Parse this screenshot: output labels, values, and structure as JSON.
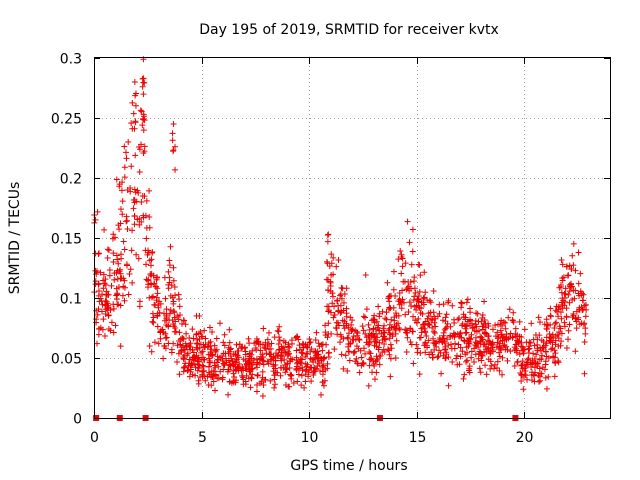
{
  "chart_data": {
    "type": "scatter",
    "title": "Day 195 of 2019, SRMTID for receiver kvtx",
    "xlabel": "GPS time / hours",
    "ylabel": "SRMTID / TECUs",
    "xlim": [
      0,
      24
    ],
    "ylim": [
      0,
      0.3
    ],
    "x_ticks": [
      0,
      5,
      10,
      15,
      20
    ],
    "y_ticks": [
      0,
      0.05,
      0.1,
      0.15,
      0.2,
      0.25,
      0.3
    ],
    "x_tick_labels": [
      "0",
      "5",
      "10",
      "15",
      "20"
    ],
    "y_tick_labels": [
      "0",
      "0.05",
      "0.1",
      "0.15",
      "0.2",
      "0.25",
      "0.3"
    ],
    "grid": true,
    "marker": "plus",
    "color": "#ee0000",
    "series": [
      {
        "name": "SRMTID",
        "profile_x": [
          0,
          0.2,
          0.5,
          1.0,
          1.5,
          1.8,
          2.0,
          2.3,
          2.5,
          2.8,
          3.0,
          3.3,
          3.6,
          3.8,
          4.2,
          5.0,
          6.0,
          7.0,
          8.0,
          9.0,
          10.0,
          10.7,
          11.0,
          11.3,
          11.8,
          12.5,
          13.3,
          14.0,
          14.5,
          15.0,
          16.0,
          17.0,
          18.0,
          18.5,
          19.0,
          19.5,
          20.0,
          20.5,
          21.0,
          21.5,
          22.0,
          22.5,
          22.9
        ],
        "profile_y": [
          0.13,
          0.1,
          0.09,
          0.12,
          0.15,
          0.2,
          0.17,
          0.22,
          0.12,
          0.1,
          0.08,
          0.07,
          0.12,
          0.07,
          0.06,
          0.05,
          0.045,
          0.045,
          0.05,
          0.05,
          0.05,
          0.045,
          0.1,
          0.09,
          0.07,
          0.06,
          0.065,
          0.08,
          0.1,
          0.09,
          0.07,
          0.065,
          0.065,
          0.06,
          0.06,
          0.07,
          0.045,
          0.05,
          0.055,
          0.07,
          0.1,
          0.09,
          0.08
        ],
        "notable_peaks": [
          {
            "x": 2.3,
            "y": 0.283
          },
          {
            "x": 1.9,
            "y": 0.28
          },
          {
            "x": 3.7,
            "y": 0.245
          },
          {
            "x": 10.9,
            "y": 0.153
          },
          {
            "x": 14.3,
            "y": 0.136
          },
          {
            "x": 21.8,
            "y": 0.128
          }
        ],
        "point_count": 1800
      }
    ],
    "baseline_markers_x": [
      0.1,
      1.2,
      2.4,
      13.3,
      19.6
    ]
  }
}
